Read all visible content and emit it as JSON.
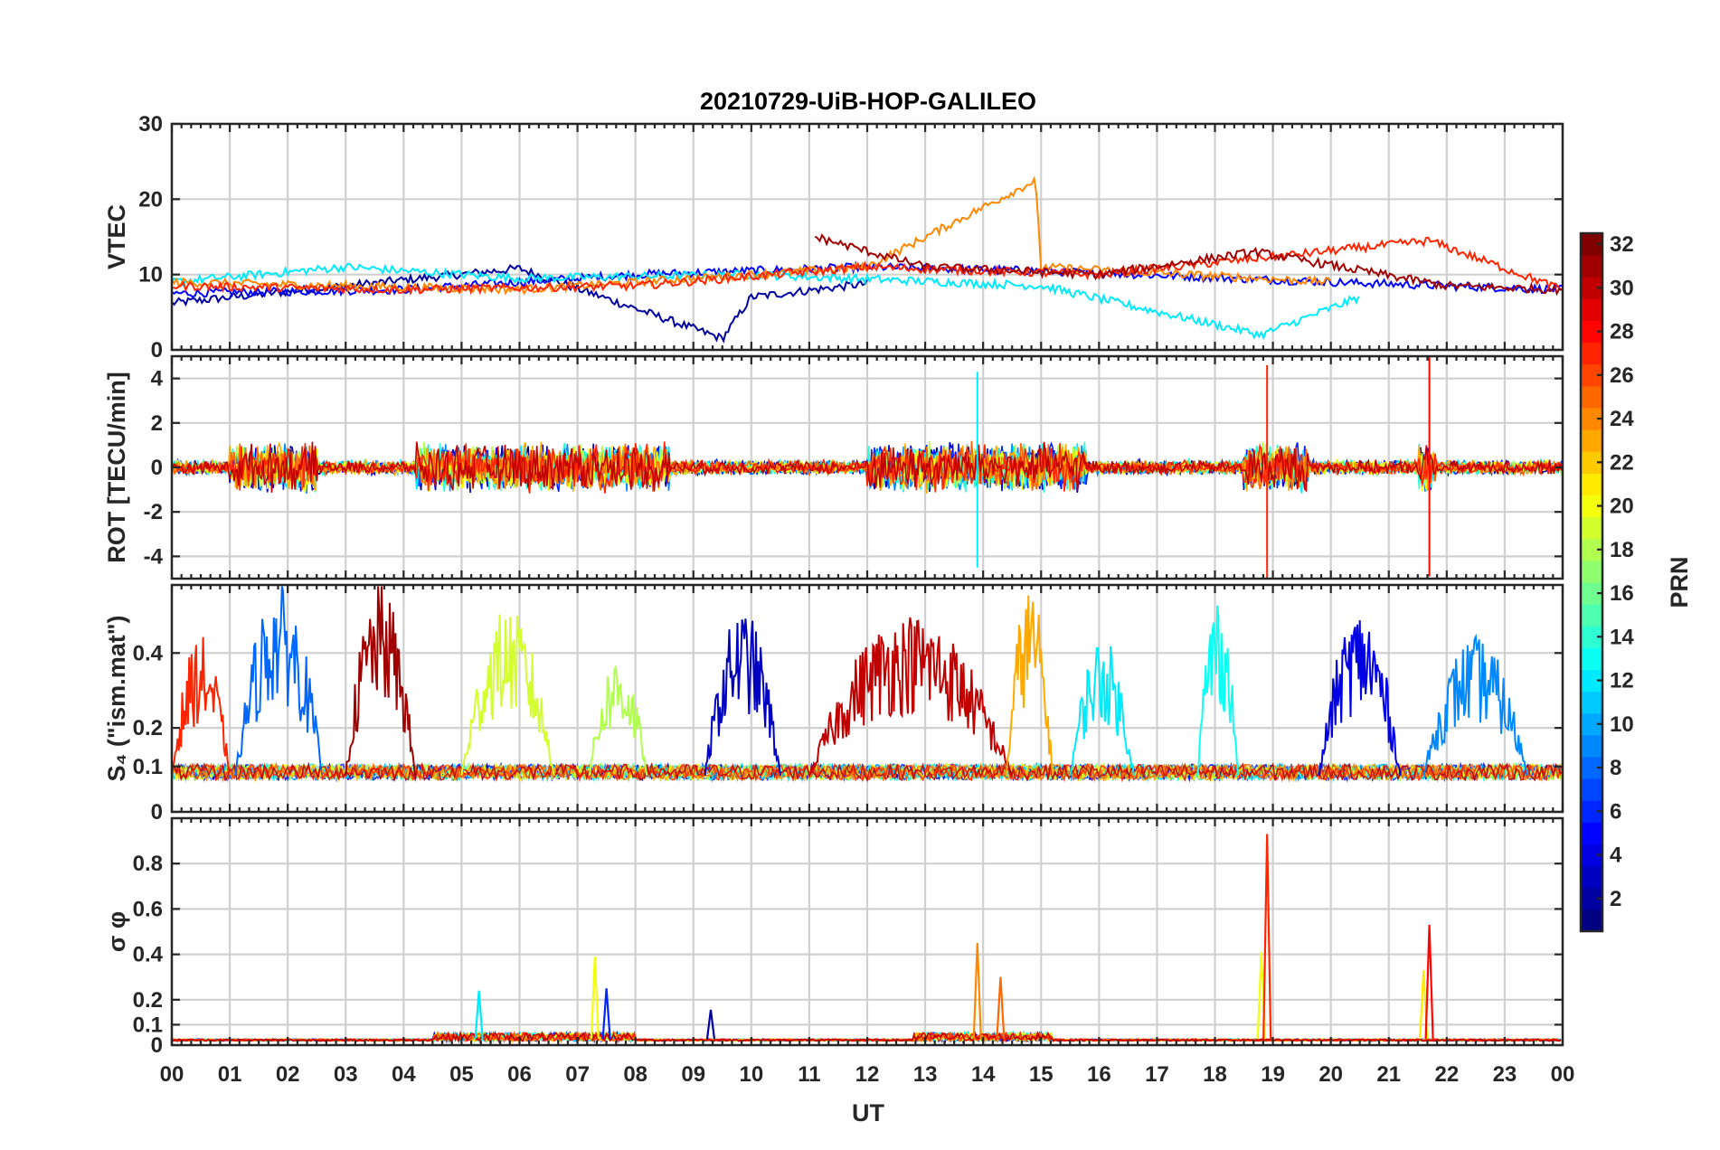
{
  "chart_data": {
    "type": "line",
    "title": "20210729-UiB-HOP-GALILEO",
    "xlabel": "UT",
    "xlim": [
      0,
      24
    ],
    "xticks": [
      "00",
      "01",
      "02",
      "03",
      "04",
      "05",
      "06",
      "07",
      "08",
      "09",
      "10",
      "11",
      "12",
      "13",
      "14",
      "15",
      "16",
      "17",
      "18",
      "19",
      "20",
      "21",
      "22",
      "23",
      "00"
    ],
    "colorbar": {
      "label": "PRN",
      "range": [
        1,
        32
      ],
      "colormap": "jet",
      "tick_labels": [
        "2",
        "4",
        "6",
        "8",
        "10",
        "12",
        "14",
        "16",
        "18",
        "20",
        "22",
        "24",
        "26",
        "28",
        "30",
        "32"
      ]
    },
    "panels": [
      {
        "ylabel": "VTEC",
        "ylim": [
          0,
          30
        ],
        "ytick_labels": [
          "0",
          "10",
          "20",
          "30"
        ],
        "baseline": 9,
        "noise": 0.8,
        "events": [
          {
            "t": 9.6,
            "peak": 1.5,
            "note": "sharp dip then recovery to ~8"
          },
          {
            "t": 14.9,
            "peak": 22.5,
            "note": "PRN 24 spike near 15 UT"
          },
          {
            "t": 18.8,
            "peak": 2.0,
            "note": "dip near 19 UT"
          },
          {
            "t": 21.7,
            "peak": 14.5,
            "note": "PRN 27 spike"
          }
        ],
        "series": [
          {
            "prn": 2,
            "values_at_hours": [
              [
                0,
                6.2
              ],
              [
                3,
                8.5
              ],
              [
                6,
                10.8
              ],
              [
                9.5,
                1.5
              ],
              [
                10,
                7
              ],
              [
                12,
                8.8
              ]
            ]
          },
          {
            "prn": 5,
            "values_at_hours": [
              [
                0,
                7.5
              ],
              [
                4,
                8
              ],
              [
                8,
                10
              ],
              [
                12,
                11
              ],
              [
                15,
                10.5
              ],
              [
                20,
                9
              ],
              [
                24,
                8
              ]
            ]
          },
          {
            "prn": 12,
            "values_at_hours": [
              [
                0,
                9
              ],
              [
                3,
                11
              ],
              [
                6,
                9.5
              ],
              [
                10,
                10
              ],
              [
                15,
                8.5
              ],
              [
                18.8,
                2
              ],
              [
                20.5,
                7
              ]
            ]
          },
          {
            "prn": 24,
            "values_at_hours": [
              [
                0,
                9
              ],
              [
                6,
                8
              ],
              [
                12,
                11
              ],
              [
                14.9,
                22.5
              ],
              [
                15,
                11
              ],
              [
                20,
                9
              ]
            ]
          },
          {
            "prn": 27,
            "values_at_hours": [
              [
                0,
                8.5
              ],
              [
                4,
                8
              ],
              [
                8,
                8.5
              ],
              [
                12,
                11
              ],
              [
                16,
                10
              ],
              [
                21.7,
                14.5
              ],
              [
                24,
                8
              ]
            ]
          },
          {
            "prn": 31,
            "values_at_hours": [
              [
                11.1,
                15
              ],
              [
                13,
                11
              ],
              [
                16,
                10
              ],
              [
                18.7,
                13
              ],
              [
                22,
                8.5
              ],
              [
                24,
                8
              ]
            ]
          }
        ]
      },
      {
        "ylabel": "ROT [TECU/min]",
        "ylim": [
          -5,
          5
        ],
        "ytick_labels": [
          "-4",
          "-2",
          "0",
          "2",
          "4"
        ],
        "baseline": 0,
        "noise": 0.35,
        "active_intervals": [
          [
            1.0,
            2.5
          ],
          [
            4.2,
            8.6
          ],
          [
            12.0,
            15.8
          ],
          [
            18.5,
            19.6
          ],
          [
            21.5,
            21.8
          ]
        ],
        "spikes": [
          {
            "t": 18.9,
            "min": -5.2,
            "max": 4.6
          },
          {
            "t": 21.7,
            "min": -4.9,
            "max": 5.1
          },
          {
            "t": 13.9,
            "min": -4.5,
            "max": 4.3
          }
        ]
      },
      {
        "ylabel": "S₄ (\"ism.mat\")",
        "ylim": [
          0,
          0.6
        ],
        "ytick_labels": [
          "0",
          "0.1",
          "0.2",
          "0.4"
        ],
        "scale": "nonlinear",
        "baseline": 0.07,
        "noise": 0.03,
        "enhancements": [
          {
            "t_start": 0.0,
            "t_end": 1.0,
            "peak": 0.45,
            "prn": 27
          },
          {
            "t_start": 1.1,
            "t_end": 2.6,
            "peak": 0.6,
            "prn": 8
          },
          {
            "t_start": 3.0,
            "t_end": 4.2,
            "peak": 0.6,
            "prn": 31
          },
          {
            "t_start": 5.0,
            "t_end": 6.6,
            "peak": 0.53,
            "prn": 19
          },
          {
            "t_start": 7.2,
            "t_end": 8.2,
            "peak": 0.4,
            "prn": 18
          },
          {
            "t_start": 9.2,
            "t_end": 10.5,
            "peak": 0.53,
            "prn": 3
          },
          {
            "t_start": 11.0,
            "t_end": 14.5,
            "peak": 0.52,
            "prn": 30
          },
          {
            "t_start": 14.4,
            "t_end": 15.2,
            "peak": 0.6,
            "prn": 23
          },
          {
            "t_start": 15.5,
            "t_end": 16.6,
            "peak": 0.45,
            "prn": 12
          },
          {
            "t_start": 17.7,
            "t_end": 18.4,
            "peak": 0.58,
            "prn": 13
          },
          {
            "t_start": 19.8,
            "t_end": 21.2,
            "peak": 0.53,
            "prn": 4
          },
          {
            "t_start": 21.6,
            "t_end": 23.4,
            "peak": 0.45,
            "prn": 9
          }
        ]
      },
      {
        "ylabel": "σ φ",
        "ylim": [
          0,
          1.0
        ],
        "ytick_labels": [
          "0",
          "0.1",
          "0.2",
          "0.4",
          "0.6",
          "0.8"
        ],
        "scale": "nonlinear",
        "baseline": 0.02,
        "noise": 0.01,
        "spikes": [
          {
            "t": 5.3,
            "peak": 0.24,
            "prn": 12
          },
          {
            "t": 7.3,
            "peak": 0.39,
            "prn": 20
          },
          {
            "t": 7.5,
            "peak": 0.25,
            "prn": 6
          },
          {
            "t": 9.3,
            "peak": 0.16,
            "prn": 2
          },
          {
            "t": 13.9,
            "peak": 0.45,
            "prn": 24
          },
          {
            "t": 14.3,
            "peak": 0.3,
            "prn": 25
          },
          {
            "t": 18.8,
            "peak": 0.41,
            "prn": 20
          },
          {
            "t": 18.9,
            "peak": 0.93,
            "prn": 27
          },
          {
            "t": 21.6,
            "peak": 0.33,
            "prn": 21
          },
          {
            "t": 21.7,
            "peak": 0.53,
            "prn": 28
          }
        ]
      }
    ]
  }
}
